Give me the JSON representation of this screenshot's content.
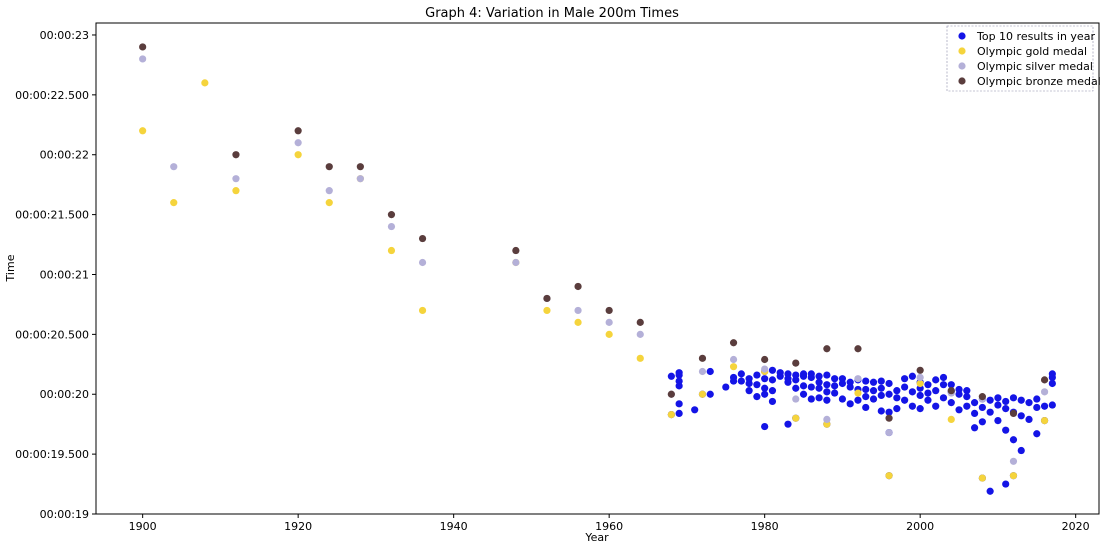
{
  "chart_data": {
    "type": "scatter",
    "title": "Graph 4: Variation in Male 200m Times",
    "xlabel": "Year",
    "ylabel": "Time",
    "xlim": [
      1894,
      2023
    ],
    "ylim": [
      19.0,
      23.1
    ],
    "x_ticks": [
      1900,
      1920,
      1940,
      1960,
      1980,
      2000,
      2020
    ],
    "x_tick_labels": [
      "1900",
      "1920",
      "1940",
      "1960",
      "1980",
      "2000",
      "2020"
    ],
    "y_ticks": [
      19.0,
      19.5,
      20.0,
      20.5,
      21.0,
      21.5,
      22.0,
      22.5,
      23.0
    ],
    "y_tick_labels": [
      "00:00:19",
      "00:00:19.500",
      "00:00:20",
      "00:00:20.500",
      "00:00:21",
      "00:00:21.500",
      "00:00:22",
      "00:00:22.500",
      "00:00:23"
    ],
    "grid": false,
    "legend_position": "top-right",
    "series": [
      {
        "name": "Top 10 results in year",
        "color": "#1414e6",
        "points": [
          [
            1968,
            20.15
          ],
          [
            1968,
            19.83
          ],
          [
            1969,
            20.16
          ],
          [
            1969,
            20.11
          ],
          [
            1969,
            20.07
          ],
          [
            1969,
            19.92
          ],
          [
            1969,
            19.84
          ],
          [
            1969,
            20.18
          ],
          [
            1971,
            19.87
          ],
          [
            1972,
            20.0
          ],
          [
            1973,
            20.19
          ],
          [
            1973,
            20.0
          ],
          [
            1975,
            20.06
          ],
          [
            1976,
            20.11
          ],
          [
            1976,
            20.14
          ],
          [
            1977,
            20.11
          ],
          [
            1977,
            20.17
          ],
          [
            1978,
            20.09
          ],
          [
            1978,
            20.13
          ],
          [
            1978,
            20.03
          ],
          [
            1979,
            20.16
          ],
          [
            1979,
            20.08
          ],
          [
            1979,
            19.98
          ],
          [
            1980,
            20.13
          ],
          [
            1980,
            20.19
          ],
          [
            1980,
            20.0
          ],
          [
            1980,
            20.05
          ],
          [
            1980,
            19.73
          ],
          [
            1981,
            20.03
          ],
          [
            1981,
            20.12
          ],
          [
            1981,
            20.2
          ],
          [
            1981,
            19.94
          ],
          [
            1982,
            20.15
          ],
          [
            1982,
            20.18
          ],
          [
            1983,
            20.1
          ],
          [
            1983,
            19.75
          ],
          [
            1983,
            20.13
          ],
          [
            1983,
            20.17
          ],
          [
            1984,
            20.16
          ],
          [
            1984,
            20.12
          ],
          [
            1984,
            20.05
          ],
          [
            1984,
            19.8
          ],
          [
            1985,
            20.15
          ],
          [
            1985,
            20.07
          ],
          [
            1985,
            20.0
          ],
          [
            1985,
            20.17
          ],
          [
            1986,
            20.14
          ],
          [
            1986,
            20.06
          ],
          [
            1986,
            19.96
          ],
          [
            1986,
            20.17
          ],
          [
            1987,
            20.1
          ],
          [
            1987,
            20.15
          ],
          [
            1987,
            20.05
          ],
          [
            1987,
            19.97
          ],
          [
            1988,
            20.08
          ],
          [
            1988,
            20.16
          ],
          [
            1988,
            19.95
          ],
          [
            1988,
            20.02
          ],
          [
            1988,
            19.75
          ],
          [
            1989,
            20.13
          ],
          [
            1989,
            20.07
          ],
          [
            1989,
            20.01
          ],
          [
            1990,
            20.09
          ],
          [
            1990,
            19.96
          ],
          [
            1990,
            20.13
          ],
          [
            1991,
            20.06
          ],
          [
            1991,
            19.92
          ],
          [
            1991,
            20.1
          ],
          [
            1992,
            19.95
          ],
          [
            1992,
            20.04
          ],
          [
            1992,
            20.12
          ],
          [
            1993,
            20.11
          ],
          [
            1993,
            19.89
          ],
          [
            1993,
            19.98
          ],
          [
            1993,
            20.04
          ],
          [
            1994,
            20.1
          ],
          [
            1994,
            19.96
          ],
          [
            1994,
            20.03
          ],
          [
            1995,
            20.11
          ],
          [
            1995,
            19.86
          ],
          [
            1995,
            19.99
          ],
          [
            1995,
            20.05
          ],
          [
            1996,
            19.32
          ],
          [
            1996,
            19.68
          ],
          [
            1996,
            19.85
          ],
          [
            1996,
            20.0
          ],
          [
            1996,
            20.09
          ],
          [
            1997,
            19.88
          ],
          [
            1997,
            20.03
          ],
          [
            1997,
            19.97
          ],
          [
            1998,
            20.13
          ],
          [
            1998,
            19.95
          ],
          [
            1998,
            20.06
          ],
          [
            1999,
            20.15
          ],
          [
            1999,
            19.9
          ],
          [
            1999,
            20.02
          ],
          [
            2000,
            20.1
          ],
          [
            2000,
            19.88
          ],
          [
            2000,
            19.99
          ],
          [
            2000,
            20.05
          ],
          [
            2001,
            20.08
          ],
          [
            2001,
            19.95
          ],
          [
            2001,
            20.01
          ],
          [
            2002,
            20.12
          ],
          [
            2002,
            19.9
          ],
          [
            2002,
            20.03
          ],
          [
            2003,
            20.08
          ],
          [
            2003,
            19.97
          ],
          [
            2003,
            20.14
          ],
          [
            2004,
            20.02
          ],
          [
            2004,
            19.93
          ],
          [
            2004,
            20.08
          ],
          [
            2005,
            20.0
          ],
          [
            2005,
            19.87
          ],
          [
            2005,
            20.04
          ],
          [
            2006,
            19.98
          ],
          [
            2006,
            19.9
          ],
          [
            2006,
            20.03
          ],
          [
            2007,
            19.93
          ],
          [
            2007,
            19.72
          ],
          [
            2007,
            19.84
          ],
          [
            2008,
            19.96
          ],
          [
            2008,
            19.77
          ],
          [
            2008,
            19.89
          ],
          [
            2008,
            19.3
          ],
          [
            2009,
            19.19
          ],
          [
            2009,
            19.85
          ],
          [
            2009,
            19.95
          ],
          [
            2010,
            19.91
          ],
          [
            2010,
            19.78
          ],
          [
            2010,
            19.97
          ],
          [
            2011,
            19.88
          ],
          [
            2011,
            19.25
          ],
          [
            2011,
            19.7
          ],
          [
            2011,
            19.94
          ],
          [
            2012,
            19.32
          ],
          [
            2012,
            19.62
          ],
          [
            2012,
            19.85
          ],
          [
            2012,
            19.97
          ],
          [
            2013,
            19.82
          ],
          [
            2013,
            19.95
          ],
          [
            2013,
            19.53
          ],
          [
            2014,
            19.93
          ],
          [
            2014,
            19.79
          ],
          [
            2015,
            19.89
          ],
          [
            2015,
            19.67
          ],
          [
            2015,
            19.96
          ],
          [
            2016,
            19.9
          ],
          [
            2016,
            19.78
          ],
          [
            2017,
            20.14
          ],
          [
            2017,
            20.09
          ],
          [
            2017,
            19.91
          ],
          [
            2017,
            20.17
          ]
        ]
      },
      {
        "name": "Olympic gold medal",
        "color": "#f5d43c",
        "points": [
          [
            1900,
            22.2
          ],
          [
            1904,
            21.6
          ],
          [
            1908,
            22.6
          ],
          [
            1912,
            21.7
          ],
          [
            1920,
            22.0
          ],
          [
            1924,
            21.6
          ],
          [
            1928,
            21.8
          ],
          [
            1932,
            21.2
          ],
          [
            1936,
            20.7
          ],
          [
            1948,
            21.1
          ],
          [
            1952,
            20.7
          ],
          [
            1956,
            20.6
          ],
          [
            1960,
            20.5
          ],
          [
            1964,
            20.3
          ],
          [
            1968,
            19.83
          ],
          [
            1972,
            20.0
          ],
          [
            1976,
            20.23
          ],
          [
            1980,
            20.19
          ],
          [
            1984,
            19.8
          ],
          [
            1988,
            19.75
          ],
          [
            1992,
            20.01
          ],
          [
            1996,
            19.32
          ],
          [
            2000,
            20.09
          ],
          [
            2004,
            19.79
          ],
          [
            2008,
            19.3
          ],
          [
            2012,
            19.32
          ],
          [
            2016,
            19.78
          ]
        ]
      },
      {
        "name": "Olympic silver medal",
        "color": "#b4b0d8",
        "points": [
          [
            1900,
            22.8
          ],
          [
            1904,
            21.9
          ],
          [
            1912,
            21.8
          ],
          [
            1920,
            22.1
          ],
          [
            1924,
            21.7
          ],
          [
            1928,
            21.8
          ],
          [
            1932,
            21.4
          ],
          [
            1936,
            21.1
          ],
          [
            1948,
            21.1
          ],
          [
            1952,
            20.8
          ],
          [
            1956,
            20.7
          ],
          [
            1960,
            20.6
          ],
          [
            1964,
            20.5
          ],
          [
            1968,
            20.0
          ],
          [
            1972,
            20.19
          ],
          [
            1976,
            20.29
          ],
          [
            1980,
            20.21
          ],
          [
            1984,
            19.96
          ],
          [
            1988,
            19.79
          ],
          [
            1992,
            20.13
          ],
          [
            1996,
            19.68
          ],
          [
            2000,
            20.14
          ],
          [
            2004,
            20.01
          ],
          [
            2008,
            19.96
          ],
          [
            2012,
            19.44
          ],
          [
            2016,
            20.02
          ]
        ]
      },
      {
        "name": "Olympic bronze medal",
        "color": "#5a3d3d",
        "points": [
          [
            1900,
            22.9
          ],
          [
            1912,
            22.0
          ],
          [
            1920,
            22.2
          ],
          [
            1924,
            21.9
          ],
          [
            1928,
            21.9
          ],
          [
            1932,
            21.5
          ],
          [
            1936,
            21.3
          ],
          [
            1948,
            21.2
          ],
          [
            1952,
            20.8
          ],
          [
            1956,
            20.9
          ],
          [
            1960,
            20.7
          ],
          [
            1964,
            20.6
          ],
          [
            1968,
            20.0
          ],
          [
            1972,
            20.3
          ],
          [
            1976,
            20.43
          ],
          [
            1980,
            20.29
          ],
          [
            1984,
            20.26
          ],
          [
            1988,
            20.38
          ],
          [
            1992,
            20.38
          ],
          [
            1996,
            19.8
          ],
          [
            2000,
            20.2
          ],
          [
            2004,
            20.03
          ],
          [
            2008,
            19.98
          ],
          [
            2012,
            19.84
          ],
          [
            2016,
            20.12
          ]
        ]
      }
    ]
  }
}
